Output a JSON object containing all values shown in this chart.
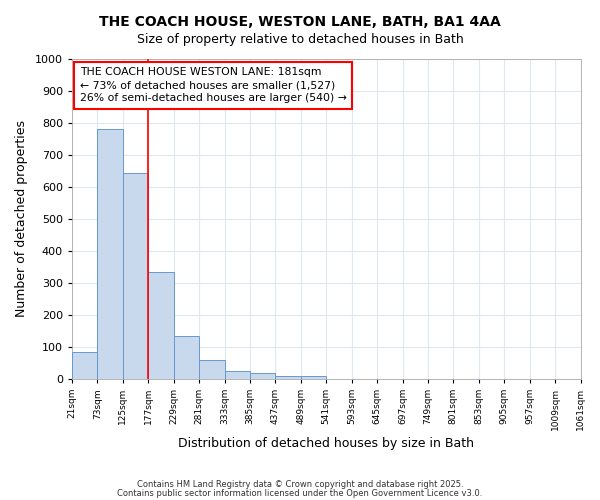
{
  "title": "THE COACH HOUSE, WESTON LANE, BATH, BA1 4AA",
  "subtitle": "Size of property relative to detached houses in Bath",
  "xlabel": "Distribution of detached houses by size in Bath",
  "ylabel": "Number of detached properties",
  "bar_color": "#c8d8ed",
  "bar_edge_color": "#6699cc",
  "bin_edges": [
    21,
    73,
    125,
    177,
    229,
    281,
    333,
    385,
    437,
    489,
    541,
    593,
    645,
    697,
    749,
    801,
    853,
    905,
    957,
    1009,
    1061
  ],
  "bar_heights": [
    85,
    780,
    645,
    335,
    135,
    60,
    25,
    18,
    10,
    8,
    0,
    0,
    0,
    0,
    0,
    0,
    0,
    0,
    0,
    0
  ],
  "tick_labels": [
    "21sqm",
    "73sqm",
    "125sqm",
    "177sqm",
    "229sqm",
    "281sqm",
    "333sqm",
    "385sqm",
    "437sqm",
    "489sqm",
    "541sqm",
    "593sqm",
    "645sqm",
    "697sqm",
    "749sqm",
    "801sqm",
    "853sqm",
    "905sqm",
    "957sqm",
    "1009sqm",
    "1061sqm"
  ],
  "red_line_x": 177,
  "annotation_text_line1": "THE COACH HOUSE WESTON LANE: 181sqm",
  "annotation_text_line2": "← 73% of detached houses are smaller (1,527)",
  "annotation_text_line3": "26% of semi-detached houses are larger (540) →",
  "ylim": [
    0,
    1000
  ],
  "yticks": [
    0,
    100,
    200,
    300,
    400,
    500,
    600,
    700,
    800,
    900,
    1000
  ],
  "footer_line1": "Contains HM Land Registry data © Crown copyright and database right 2025.",
  "footer_line2": "Contains public sector information licensed under the Open Government Licence v3.0.",
  "bg_color": "#ffffff",
  "plot_bg_color": "#ffffff",
  "grid_color": "#dde8f0"
}
